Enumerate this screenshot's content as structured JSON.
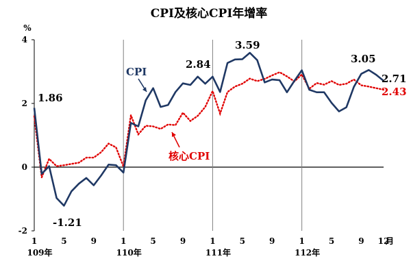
{
  "chart_data": {
    "type": "line",
    "title": "CPI及核心CPI年增率",
    "ylabel": "%",
    "xlabel_unit": "月",
    "ylim": [
      -2,
      4
    ],
    "yticks": [
      "4",
      "2",
      "0",
      "-2"
    ],
    "months": [
      1,
      2,
      3,
      4,
      5,
      6,
      7,
      8,
      9,
      10,
      11,
      12,
      1,
      2,
      3,
      4,
      5,
      6,
      7,
      8,
      9,
      10,
      11,
      12,
      1,
      2,
      3,
      4,
      5,
      6,
      7,
      8,
      9,
      10,
      11,
      12,
      1,
      2,
      3,
      4,
      5,
      6,
      7,
      8,
      9,
      10,
      11,
      12
    ],
    "xtick_labels": [
      "1",
      "5",
      "9",
      "1",
      "5",
      "9",
      "1",
      "5",
      "9",
      "1",
      "5",
      "9",
      "12"
    ],
    "year_labels": [
      "109年",
      "110年",
      "111年",
      "112年"
    ],
    "colors": {
      "cpi": "#1f3864",
      "core": "#e00000",
      "zero_line": "#000000",
      "year_divider": "#808080"
    },
    "series": [
      {
        "name": "CPI",
        "values": [
          1.86,
          -0.21,
          0.03,
          -0.97,
          -1.21,
          -0.76,
          -0.52,
          -0.34,
          -0.57,
          -0.26,
          0.08,
          0.06,
          -0.17,
          1.39,
          1.28,
          2.1,
          2.48,
          1.89,
          1.95,
          2.36,
          2.63,
          2.58,
          2.84,
          2.62,
          2.84,
          2.36,
          3.27,
          3.38,
          3.39,
          3.59,
          3.36,
          2.66,
          2.75,
          2.73,
          2.35,
          2.71,
          3.04,
          2.43,
          2.35,
          2.35,
          2.02,
          1.75,
          1.88,
          2.52,
          2.93,
          3.05,
          2.9,
          2.71
        ]
      },
      {
        "name": "核心CPI",
        "values": [
          1.6,
          -0.32,
          0.26,
          0.03,
          0.06,
          0.1,
          0.14,
          0.3,
          0.3,
          0.47,
          0.74,
          0.62,
          0.02,
          1.63,
          1.03,
          1.3,
          1.28,
          1.2,
          1.34,
          1.32,
          1.71,
          1.45,
          1.61,
          1.89,
          2.39,
          1.68,
          2.36,
          2.53,
          2.62,
          2.78,
          2.7,
          2.77,
          2.88,
          2.98,
          2.85,
          2.69,
          2.91,
          2.46,
          2.64,
          2.59,
          2.7,
          2.58,
          2.62,
          2.75,
          2.57,
          2.53,
          2.48,
          2.43
        ]
      }
    ],
    "annotations": {
      "first": "1.86",
      "min": "-1.21",
      "cpi_110_end": "2.84",
      "max": "3.59",
      "cpi_112_peak": "3.05",
      "cpi_last": "2.71",
      "core_last": "2.43",
      "cpi_name": "CPI",
      "core_name": "核心CPI"
    }
  }
}
